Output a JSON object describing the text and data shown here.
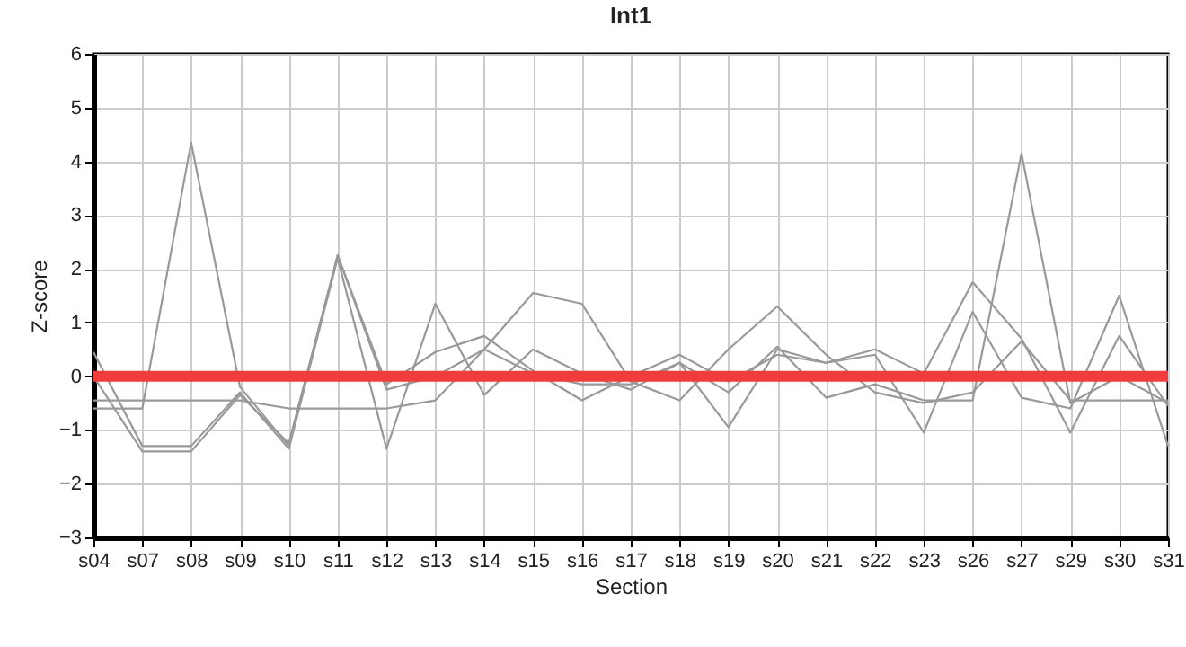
{
  "chart_data": {
    "type": "line",
    "title": "Int1",
    "xlabel": "Section",
    "ylabel": "Z-score",
    "categories": [
      "s04",
      "s07",
      "s08",
      "s09",
      "s10",
      "s11",
      "s12",
      "s13",
      "s14",
      "s15",
      "s16",
      "s17",
      "s18",
      "s19",
      "s20",
      "s21",
      "s22",
      "s23",
      "s26",
      "s27",
      "s29",
      "s30",
      "s31"
    ],
    "series": [
      {
        "color": "#999999",
        "values": [
          -0.6,
          -0.6,
          4.35,
          -0.2,
          -1.3,
          2.25,
          -0.25,
          0.0,
          0.5,
          0.05,
          -0.15,
          -0.15,
          0.25,
          -0.3,
          0.55,
          -0.4,
          -0.15,
          -0.45,
          -0.45,
          4.15,
          -0.5,
          0.0,
          -0.5
        ]
      },
      {
        "color": "#999999",
        "values": [
          0.45,
          -1.3,
          -1.3,
          -0.3,
          -1.35,
          2.2,
          -1.35,
          1.35,
          -0.35,
          0.5,
          0.05,
          -0.25,
          0.25,
          -0.95,
          0.5,
          0.25,
          0.4,
          -1.05,
          1.2,
          -0.4,
          -0.6,
          1.5,
          -1.3
        ]
      },
      {
        "color": "#999999",
        "values": [
          0.0,
          -1.4,
          -1.4,
          -0.35,
          -1.25,
          2.25,
          -0.15,
          0.45,
          0.75,
          0.1,
          -0.45,
          0.0,
          0.4,
          -0.1,
          0.4,
          0.25,
          0.5,
          0.05,
          1.75,
          0.7,
          -1.05,
          0.75,
          -0.55
        ]
      },
      {
        "color": "#999999",
        "values": [
          -0.45,
          -0.45,
          -0.45,
          -0.45,
          -0.6,
          -0.6,
          -0.6,
          -0.45,
          0.5,
          1.55,
          1.35,
          -0.1,
          -0.45,
          0.5,
          1.3,
          0.4,
          -0.3,
          -0.5,
          -0.3,
          0.65,
          -0.45,
          -0.45,
          -0.45
        ]
      },
      {
        "color": "#f03c3c",
        "values": [
          0,
          0,
          0,
          0,
          0,
          0,
          0,
          0,
          0,
          0,
          0,
          0,
          0,
          0,
          0,
          0,
          0,
          0,
          0,
          0,
          0,
          0,
          0
        ]
      }
    ],
    "ylim": [
      -3,
      6
    ],
    "yticks": [
      -3,
      -2,
      -1,
      0,
      1,
      2,
      3,
      4,
      5,
      6
    ],
    "grid": true,
    "legend": false,
    "marker": "none",
    "line_style": "solid"
  }
}
